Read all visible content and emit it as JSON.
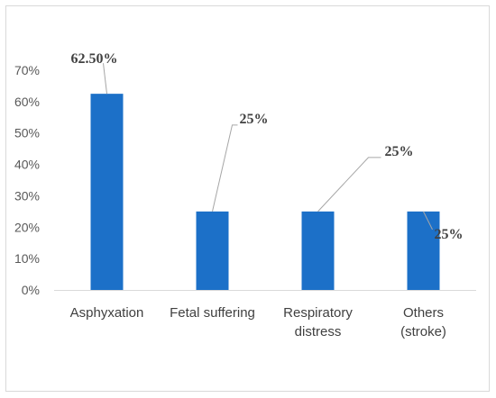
{
  "chart_data": {
    "type": "bar",
    "categories": [
      [
        "Asphyxation"
      ],
      [
        "Fetal suffering"
      ],
      [
        "Respiratory",
        "distress"
      ],
      [
        "Others",
        "(stroke)"
      ]
    ],
    "values": [
      62.5,
      25,
      25,
      25
    ],
    "data_labels": [
      "62.50%",
      "25%",
      "25%",
      "25%"
    ],
    "ylim": [
      0,
      70
    ],
    "yticks": [
      0,
      10,
      20,
      30,
      40,
      50,
      60,
      70
    ],
    "ytick_labels": [
      "0%",
      "10%",
      "20%",
      "30%",
      "40%",
      "50%",
      "60%",
      "70%"
    ],
    "title": "",
    "xlabel": "",
    "ylabel": "",
    "bar_color": "#1c70c8",
    "grid": false,
    "legend": "none"
  }
}
